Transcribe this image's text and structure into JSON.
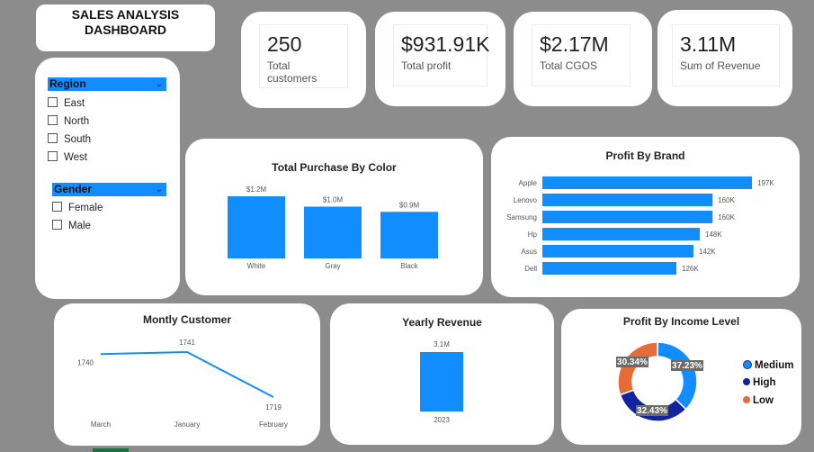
{
  "dashboard": {
    "title_line1": "SALES ANALYSIS",
    "title_line2": "DASHBOARD"
  },
  "kpis": [
    {
      "value": "250",
      "label": "Total customers"
    },
    {
      "value": "$931.91K",
      "label": "Total profit"
    },
    {
      "value": "$2.17M",
      "label": "Total CGOS"
    },
    {
      "value": "3.11M",
      "label": "Sum of Revenue"
    }
  ],
  "slicers": {
    "region": {
      "header": "Region",
      "items": [
        "East",
        "North",
        "South",
        "West"
      ]
    },
    "gender": {
      "header": "Gender",
      "items": [
        "Female",
        "Male"
      ]
    }
  },
  "colors": {
    "bar": "#118dff",
    "line": "#118dff",
    "medium": "#118dff",
    "high": "#12239e",
    "low": "#e66c37",
    "background": "#8c8c8c"
  },
  "chart_data": [
    {
      "type": "bar",
      "title": "Total Purchase By Color",
      "categories": [
        "White",
        "Gray",
        "Black"
      ],
      "values": [
        1.2,
        1.0,
        0.9
      ],
      "value_labels": [
        "$1.2M",
        "$1.0M",
        "$0.9M"
      ],
      "unit": "$M",
      "ylim": [
        0,
        1.2
      ],
      "grid": false
    },
    {
      "type": "bar",
      "orientation": "horizontal",
      "title": "Profit By Brand",
      "categories": [
        "Apple",
        "Lenovo",
        "Samsung",
        "Hp",
        "Asus",
        "Dell"
      ],
      "values": [
        197,
        160,
        160,
        148,
        142,
        126
      ],
      "value_labels": [
        "197K",
        "160K",
        "160K",
        "148K",
        "142K",
        "126K"
      ],
      "unit": "K",
      "xlim": [
        0,
        197
      ],
      "grid": false
    },
    {
      "type": "line",
      "title": "Montly Customer",
      "categories": [
        "March",
        "January",
        "February"
      ],
      "values": [
        1740,
        1741,
        1719
      ],
      "value_labels": [
        "1740",
        "1741",
        "1719"
      ],
      "ylim": [
        1719,
        1741
      ],
      "grid": false
    },
    {
      "type": "bar",
      "title": "Yearly Revenue",
      "categories": [
        "2023"
      ],
      "values": [
        3.1
      ],
      "value_labels": [
        "3.1M"
      ],
      "unit": "M",
      "ylim": [
        0,
        3.1
      ],
      "grid": false
    },
    {
      "type": "pie",
      "donut": true,
      "title": "Profit By Income Level",
      "categories": [
        "Medium",
        "High",
        "Low"
      ],
      "values": [
        37.23,
        32.43,
        30.34
      ],
      "value_labels": [
        "37.23%",
        "32.43%",
        "30.34%"
      ],
      "legend": [
        "Medium",
        "High",
        "Low"
      ],
      "legend_position": "right"
    }
  ]
}
